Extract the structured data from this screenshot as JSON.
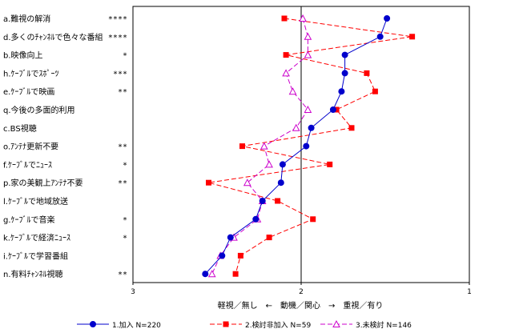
{
  "chart_data": {
    "type": "line",
    "orientation": "horizontal",
    "title": "",
    "xlabel": "軽視／無し　←　動機／関心　→　重視／有り",
    "xlim": [
      3,
      1
    ],
    "xticks": [
      "3",
      "2",
      "1"
    ],
    "x_reversed": true,
    "categories": [
      "a.難視の解消",
      "d.多くのﾁｬﾝﾈﾙで色々な番組",
      "b.映像向上",
      "h.ｹｰﾌﾞﾙでｽﾎﾟｰﾂ",
      "e.ｹｰﾌﾞﾙで映画",
      "q.今後の多面的利用",
      "c.BS視聴",
      "o.ｱﾝﾃﾅ更新不要",
      "f.ｹｰﾌﾞﾙでﾆｭｰｽ",
      "p.家の美観上ｱﾝﾃﾅ不要",
      "l.ｹｰﾌﾞﾙで地域放送",
      "g.ｹｰﾌﾞﾙで音楽",
      "k.ｹｰﾌﾞﾙで経済ﾆｭｰｽ",
      "i.ｹｰﾌﾞﾙで学習番組",
      "n.有料ﾁｬﾝﾈﾙ視聴"
    ],
    "significance": [
      "****",
      "****",
      "*",
      "***",
      "**",
      "",
      "",
      "**",
      "*",
      "**",
      "",
      "*",
      "*",
      "",
      "**"
    ],
    "series": [
      {
        "name": "1.加入 N=220",
        "color": "#0000cc",
        "marker": "circle",
        "line": "solid",
        "values": [
          1.49,
          1.53,
          1.74,
          1.74,
          1.76,
          1.81,
          1.94,
          1.97,
          2.11,
          2.12,
          2.23,
          2.27,
          2.42,
          2.47,
          2.57
        ]
      },
      {
        "name": "2.検討非加入 N=59",
        "color": "#ff0000",
        "marker": "square",
        "line": "dashed",
        "values": [
          2.1,
          1.34,
          2.09,
          1.61,
          1.56,
          1.79,
          1.7,
          2.35,
          1.83,
          2.55,
          2.14,
          1.93,
          2.19,
          2.36,
          2.39
        ]
      },
      {
        "name": "3.未検討 N=146",
        "color": "#cc00cc",
        "marker": "triangle-open",
        "line": "dashed",
        "values": [
          1.99,
          1.96,
          1.96,
          2.09,
          2.05,
          1.96,
          2.03,
          2.22,
          2.19,
          2.32,
          2.23,
          2.26,
          2.4,
          2.48,
          2.53
        ]
      }
    ],
    "legend_position": "bottom",
    "grid": false
  }
}
